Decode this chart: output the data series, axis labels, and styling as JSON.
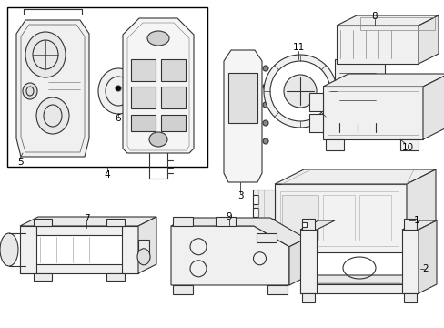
{
  "bg_color": "#ffffff",
  "line_color": "#333333",
  "lw": 0.8,
  "fig_w": 4.89,
  "fig_h": 3.6,
  "dpi": 100
}
